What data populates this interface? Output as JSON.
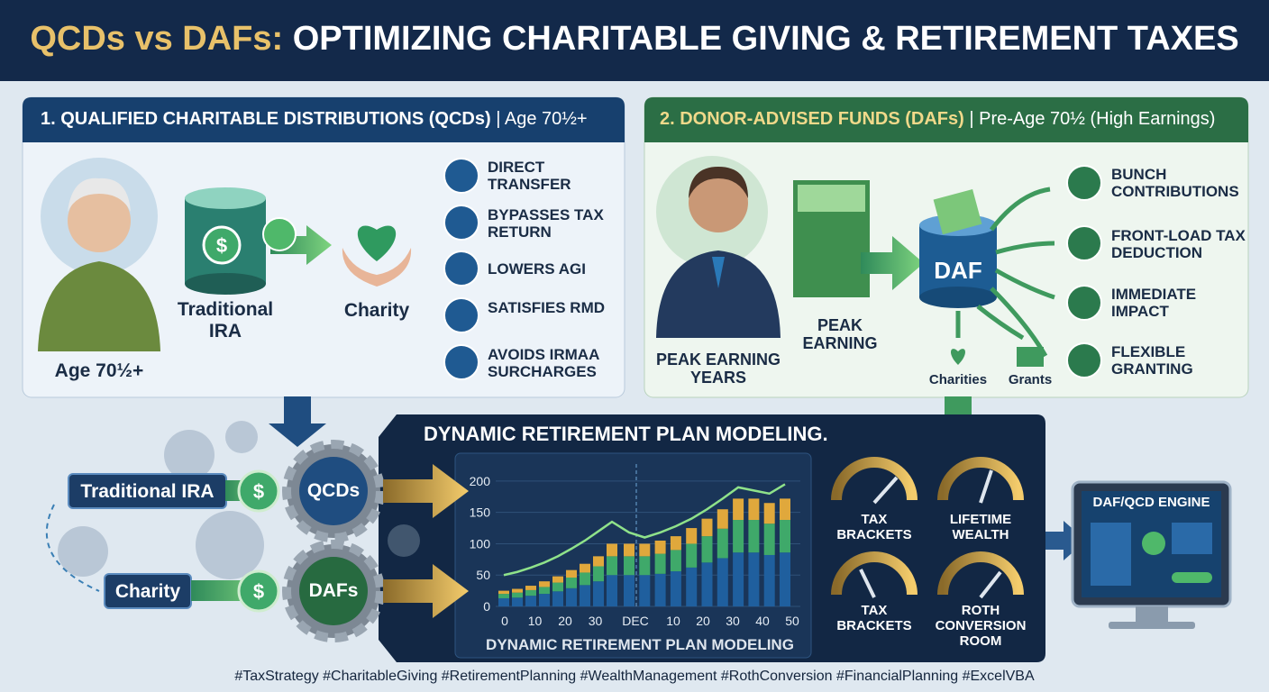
{
  "header": {
    "title_highlight": "QCDs vs DAFs:",
    "title": "OPTIMIZING CHARITABLE GIVING & RETIREMENT TAXES"
  },
  "qcd_panel": {
    "title": "1. QUALIFIED CHARITABLE DISTRIBUTIONS (QCDs)",
    "subtitle": "| Age 70½+",
    "person_label": "Age 70½+",
    "source_label": "Traditional IRA",
    "target_label": "Charity",
    "benefits": [
      "DIRECT TRANSFER",
      "BYPASSES TAX RETURN",
      "LOWERS AGI",
      "SATISFIES RMD",
      "AVOIDS IRMAA SURCHARGES"
    ]
  },
  "daf_panel": {
    "title": "2. DONOR-ADVISED FUNDS (DAFs)",
    "subtitle": "| Pre-Age 70½ (High Earnings)",
    "person_label": "PEAK EARNING YEARS",
    "money_label": "PEAK EARNING",
    "fund_label": "DAF",
    "outputs": [
      "Charities",
      "Grants"
    ],
    "benefits": [
      "BUNCH CONTRIBUTIONS",
      "FRONT-LOAD TAX DEDUCTION",
      "IMMEDIATE IMPACT",
      "FLEXIBLE GRANTING"
    ]
  },
  "modeling": {
    "title": "DYNAMIC RETIREMENT PLAN MODELING.",
    "flow_inputs": [
      "Traditional IRA",
      "Charity"
    ],
    "flow_nodes": [
      "QCDs",
      "DAFs"
    ],
    "chart": {
      "type": "bar",
      "title": "DYNAMIC RETIREMENT PLAN MODELING",
      "categories": [
        null,
        null,
        null,
        null,
        null,
        null,
        null,
        null,
        null,
        null,
        null,
        null,
        null,
        null,
        null,
        null,
        null,
        null,
        null,
        null
      ],
      "xtick_labels": [
        "0",
        "10",
        "20",
        "30",
        "DEC",
        "10",
        "20",
        "30",
        "40",
        "50"
      ],
      "series": [
        {
          "color": "#1f5f9e",
          "values": [
            13,
            14,
            17,
            20,
            24,
            29,
            34,
            40,
            50,
            50,
            50,
            52,
            56,
            62,
            70,
            77,
            86,
            86,
            82,
            86
          ]
        },
        {
          "color": "#3fa96a",
          "values": [
            7,
            8,
            9,
            11,
            14,
            17,
            20,
            24,
            30,
            30,
            30,
            32,
            34,
            38,
            42,
            47,
            52,
            52,
            50,
            52
          ]
        },
        {
          "color": "#e0a83c",
          "values": [
            5,
            6,
            7,
            9,
            10,
            12,
            14,
            16,
            20,
            20,
            20,
            21,
            22,
            25,
            28,
            31,
            34,
            34,
            33,
            34
          ]
        }
      ],
      "trend": {
        "color": "#8fe28a",
        "values": [
          50,
          55,
          62,
          70,
          80,
          92,
          105,
          120,
          135,
          118,
          110,
          118,
          128,
          140,
          155,
          172,
          190,
          185,
          180,
          195
        ]
      },
      "ylim": [
        0,
        220
      ],
      "yticks": [
        0,
        50,
        100,
        150,
        200
      ],
      "grid": true
    },
    "gauges": [
      "TAX BRACKETS",
      "LIFETIME WEALTH",
      "TAX BRACKETS",
      "ROTH CONVERSION ROOM"
    ],
    "engine": "DAF/QCD ENGINE"
  },
  "footer": "#TaxStrategy #CharitableGiving #RetirementPlanning #WealthManagement #RothConversion #FinancialPlanning #ExcelVBA"
}
